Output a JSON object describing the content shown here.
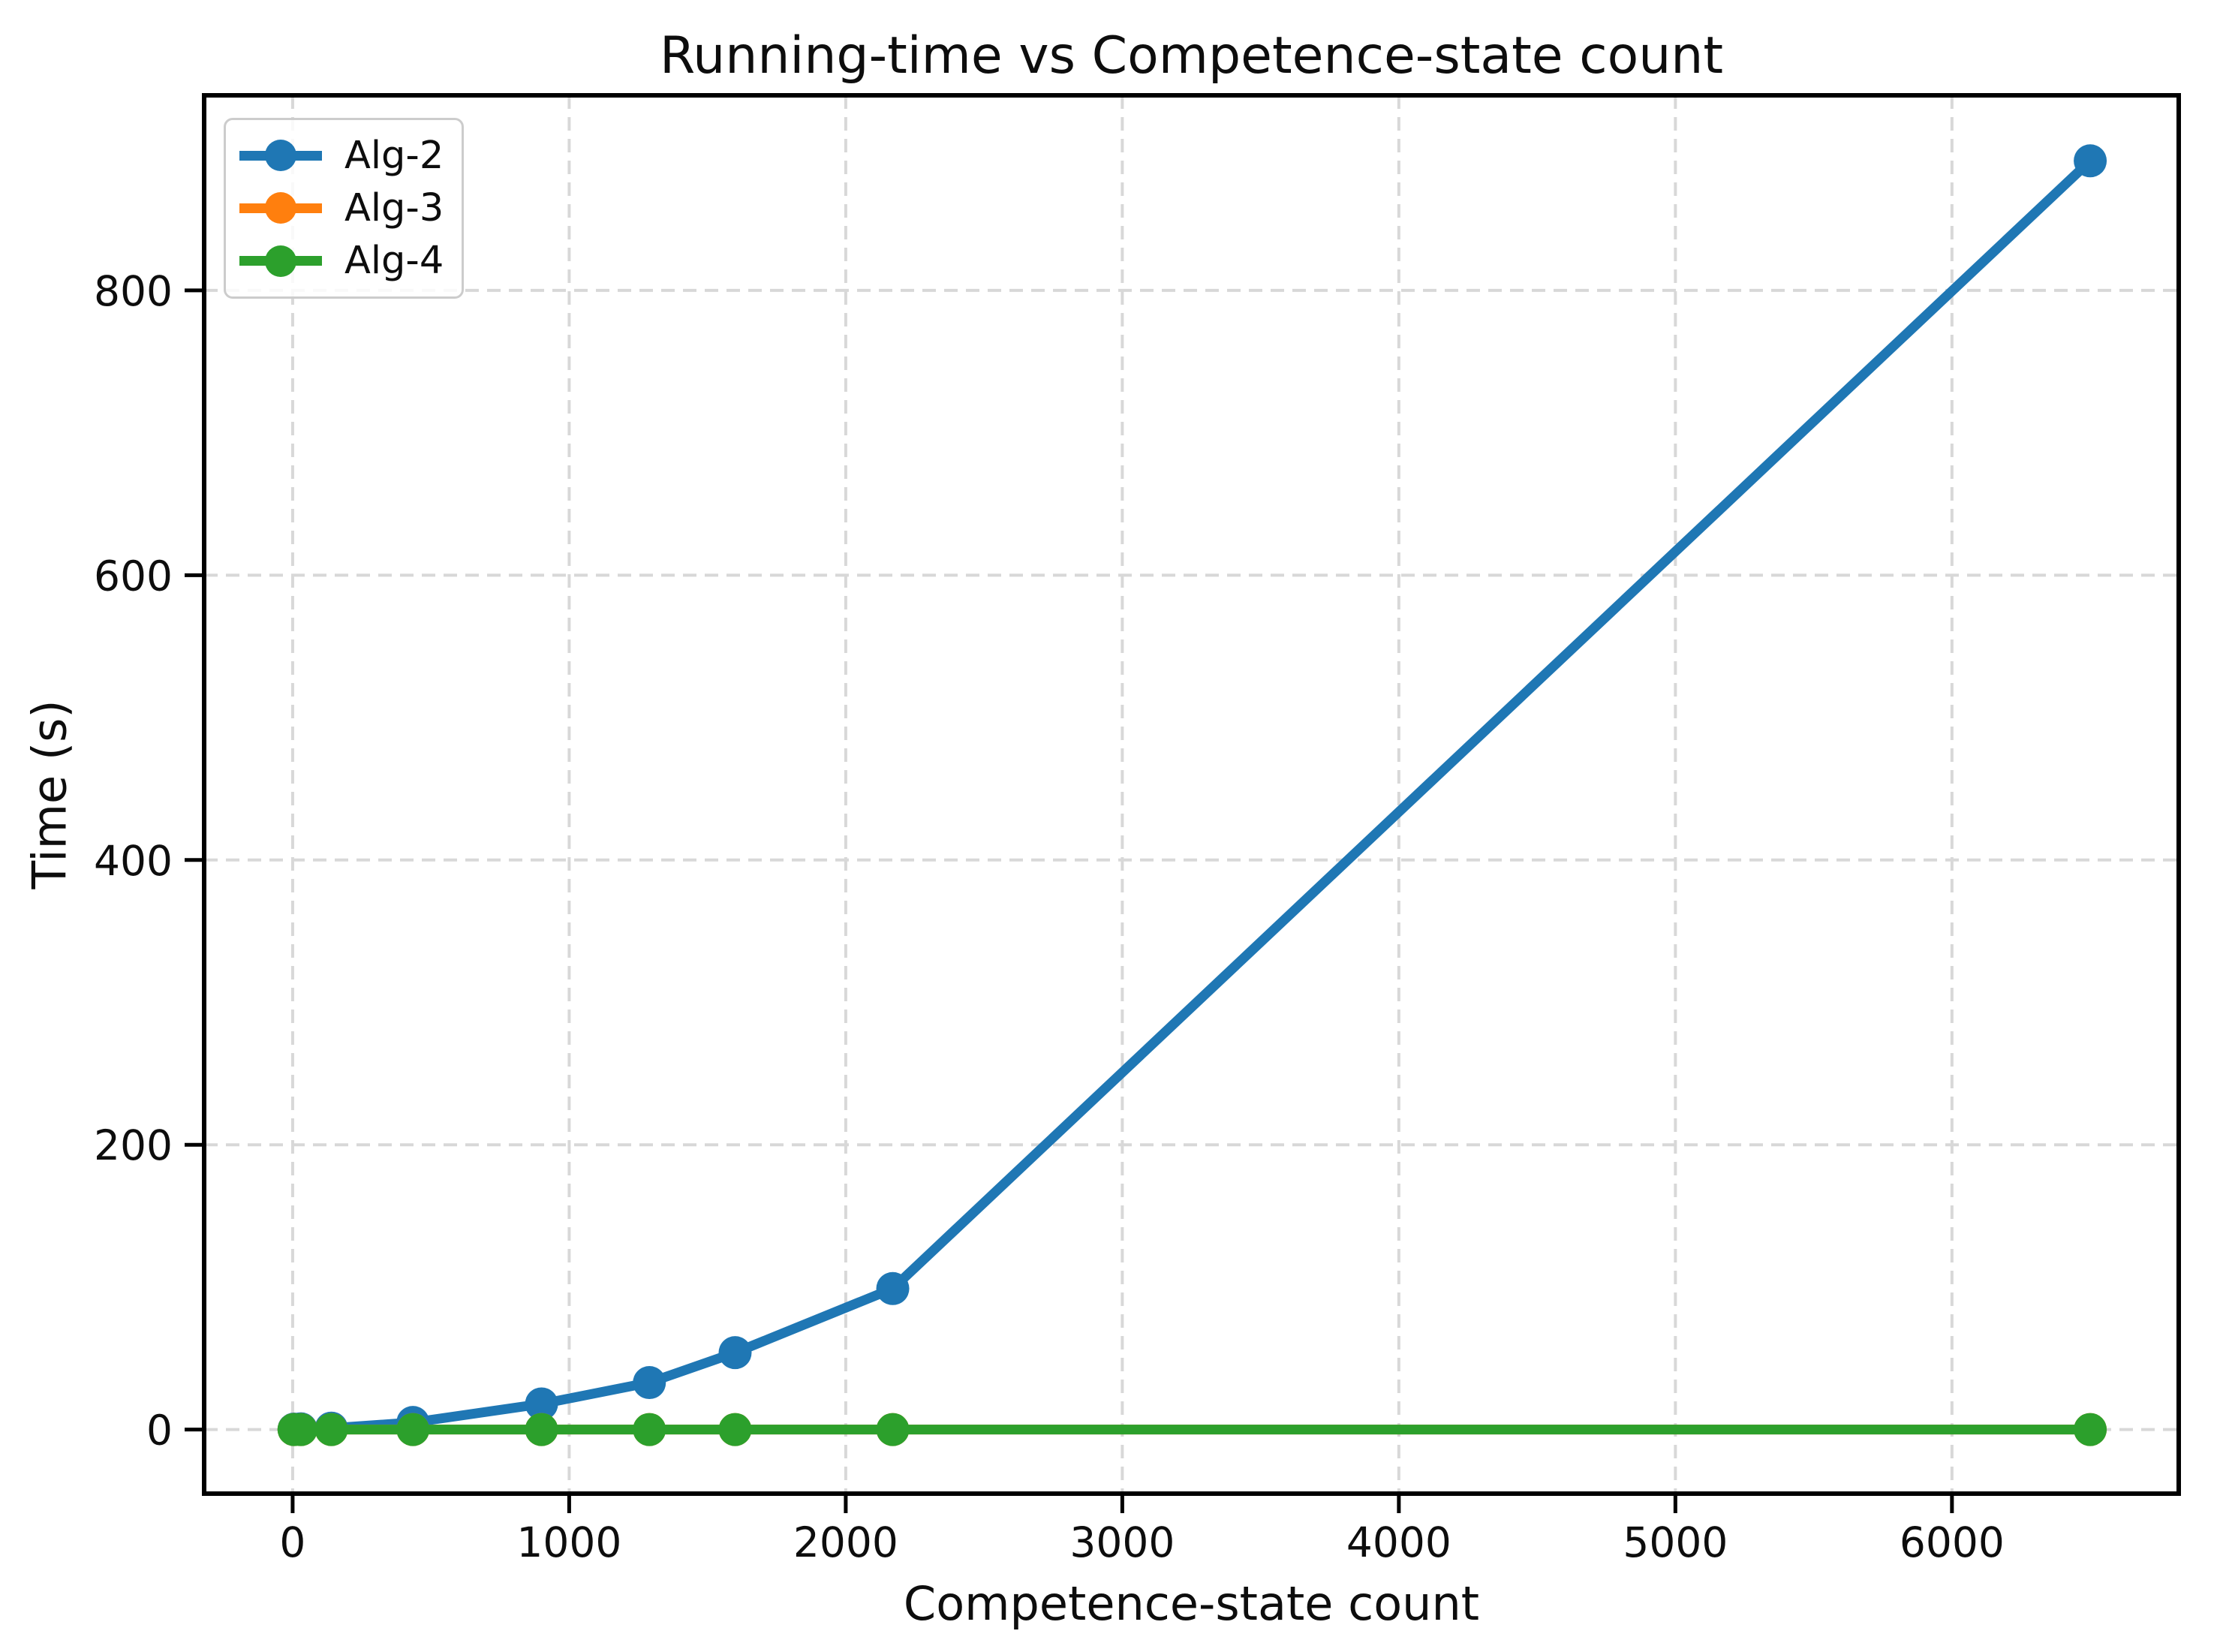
{
  "chart_data": {
    "type": "line",
    "title": "Running-time vs Competence-state count",
    "xlabel": "Competence-state count",
    "ylabel": "Time (s)",
    "x": [
      5,
      30,
      140,
      435,
      900,
      1290,
      1600,
      2170,
      6500
    ],
    "series": [
      {
        "name": "Alg-2",
        "color": "#1f77b4",
        "values": [
          0.3,
          0.5,
          1,
          5,
          18,
          33,
          54,
          99,
          891
        ]
      },
      {
        "name": "Alg-3",
        "color": "#ff7f0e",
        "values": [
          0,
          0,
          0,
          0,
          0,
          0,
          0,
          0,
          0
        ],
        "visibility": "fully occluded by Alg-4 line (values ≈ 0 s)"
      },
      {
        "name": "Alg-4",
        "color": "#2ca02c",
        "values": [
          0,
          0,
          0,
          0,
          0,
          0,
          0,
          0,
          0
        ]
      }
    ],
    "x_ticks": [
      0,
      1000,
      2000,
      3000,
      4000,
      5000,
      6000
    ],
    "y_ticks": [
      0,
      200,
      400,
      600,
      800
    ],
    "xlim": [
      -320,
      6820
    ],
    "ylim": [
      -45,
      937
    ],
    "grid": {
      "show": true,
      "style": "dashed",
      "color": "#d8d8d8"
    },
    "legend_position": "upper-left",
    "marker": "circle"
  }
}
